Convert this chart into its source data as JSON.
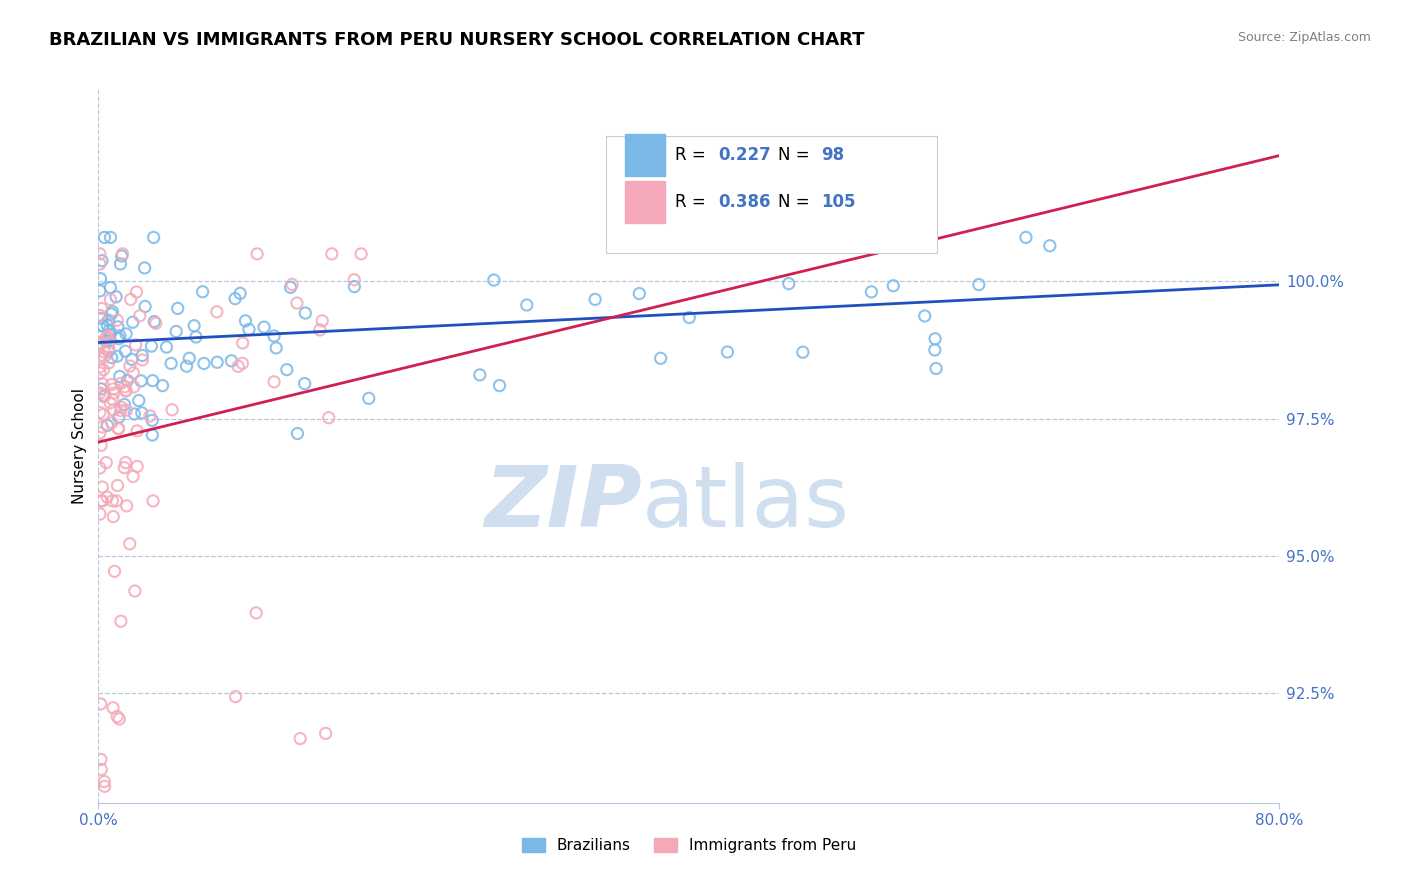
{
  "title": "BRAZILIAN VS IMMIGRANTS FROM PERU NURSERY SCHOOL CORRELATION CHART",
  "source": "Source: ZipAtlas.com",
  "ylabel": "Nursery School",
  "ytick_labels": [
    "92.5%",
    "95.0%",
    "97.5%",
    "100.0%"
  ],
  "ytick_values": [
    0.925,
    0.95,
    0.975,
    1.0
  ],
  "legend_entries": [
    {
      "label": "Brazilians",
      "color": "#7ab8e8",
      "R": "0.227",
      "N": "98"
    },
    {
      "label": "Immigrants from Peru",
      "color": "#f4a8b8",
      "R": "0.386",
      "N": "105"
    }
  ],
  "blue_scatter_color": "#7ab8e8",
  "pink_scatter_color": "#f4a8b8",
  "blue_edge_color": "#5090d0",
  "pink_edge_color": "#e06080",
  "blue_line_color": "#2050c0",
  "pink_line_color": "#d02050",
  "watermark_zip": "ZIP",
  "watermark_atlas": "atlas",
  "watermark_color": "#d0dff0",
  "title_fontsize": 13,
  "axis_color": "#4472c4",
  "grid_color": "#b8c8e0",
  "xlim": [
    0.0,
    0.8
  ],
  "ylim": [
    0.905,
    1.035
  ],
  "blue_N": 98,
  "pink_N": 105,
  "blue_R": 0.227,
  "pink_R": 0.386
}
